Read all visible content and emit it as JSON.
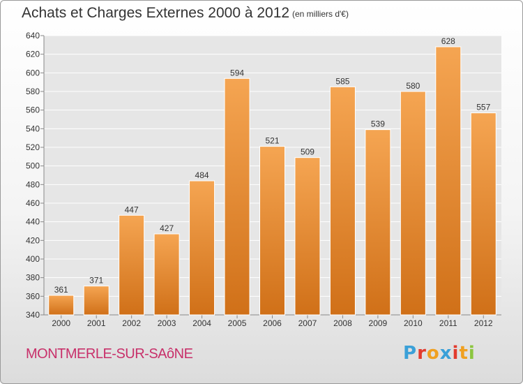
{
  "header": {
    "title": "Achats et Charges Externes 2000 à 2012",
    "subtitle": "(en milliers d'€)"
  },
  "footer": {
    "town": "MONTMERLE-SUR-SAôNE",
    "logo_letters": [
      "P",
      "r",
      "o",
      "x",
      "i",
      "t",
      "i"
    ],
    "logo_colors": [
      "#3aa0d8",
      "#e23b2e",
      "#f0a020",
      "#3aa0d8",
      "#e23b2e",
      "#f0a020",
      "#8cc63f"
    ]
  },
  "chart_data": {
    "type": "bar",
    "title": "Achats et Charges Externes 2000 à 2012",
    "subtitle": "(en milliers d'€)",
    "categories": [
      "2000",
      "2001",
      "2002",
      "2003",
      "2004",
      "2005",
      "2006",
      "2007",
      "2008",
      "2009",
      "2010",
      "2011",
      "2012"
    ],
    "values": [
      361,
      371,
      447,
      427,
      484,
      594,
      521,
      509,
      585,
      539,
      580,
      628,
      557
    ],
    "ylim": [
      340,
      640
    ],
    "yticks": [
      340,
      360,
      380,
      400,
      420,
      440,
      460,
      480,
      500,
      520,
      540,
      560,
      580,
      600,
      620,
      640
    ],
    "grid": true,
    "bar_color": "#f0a050",
    "bar_color_dark": "#d07020"
  }
}
